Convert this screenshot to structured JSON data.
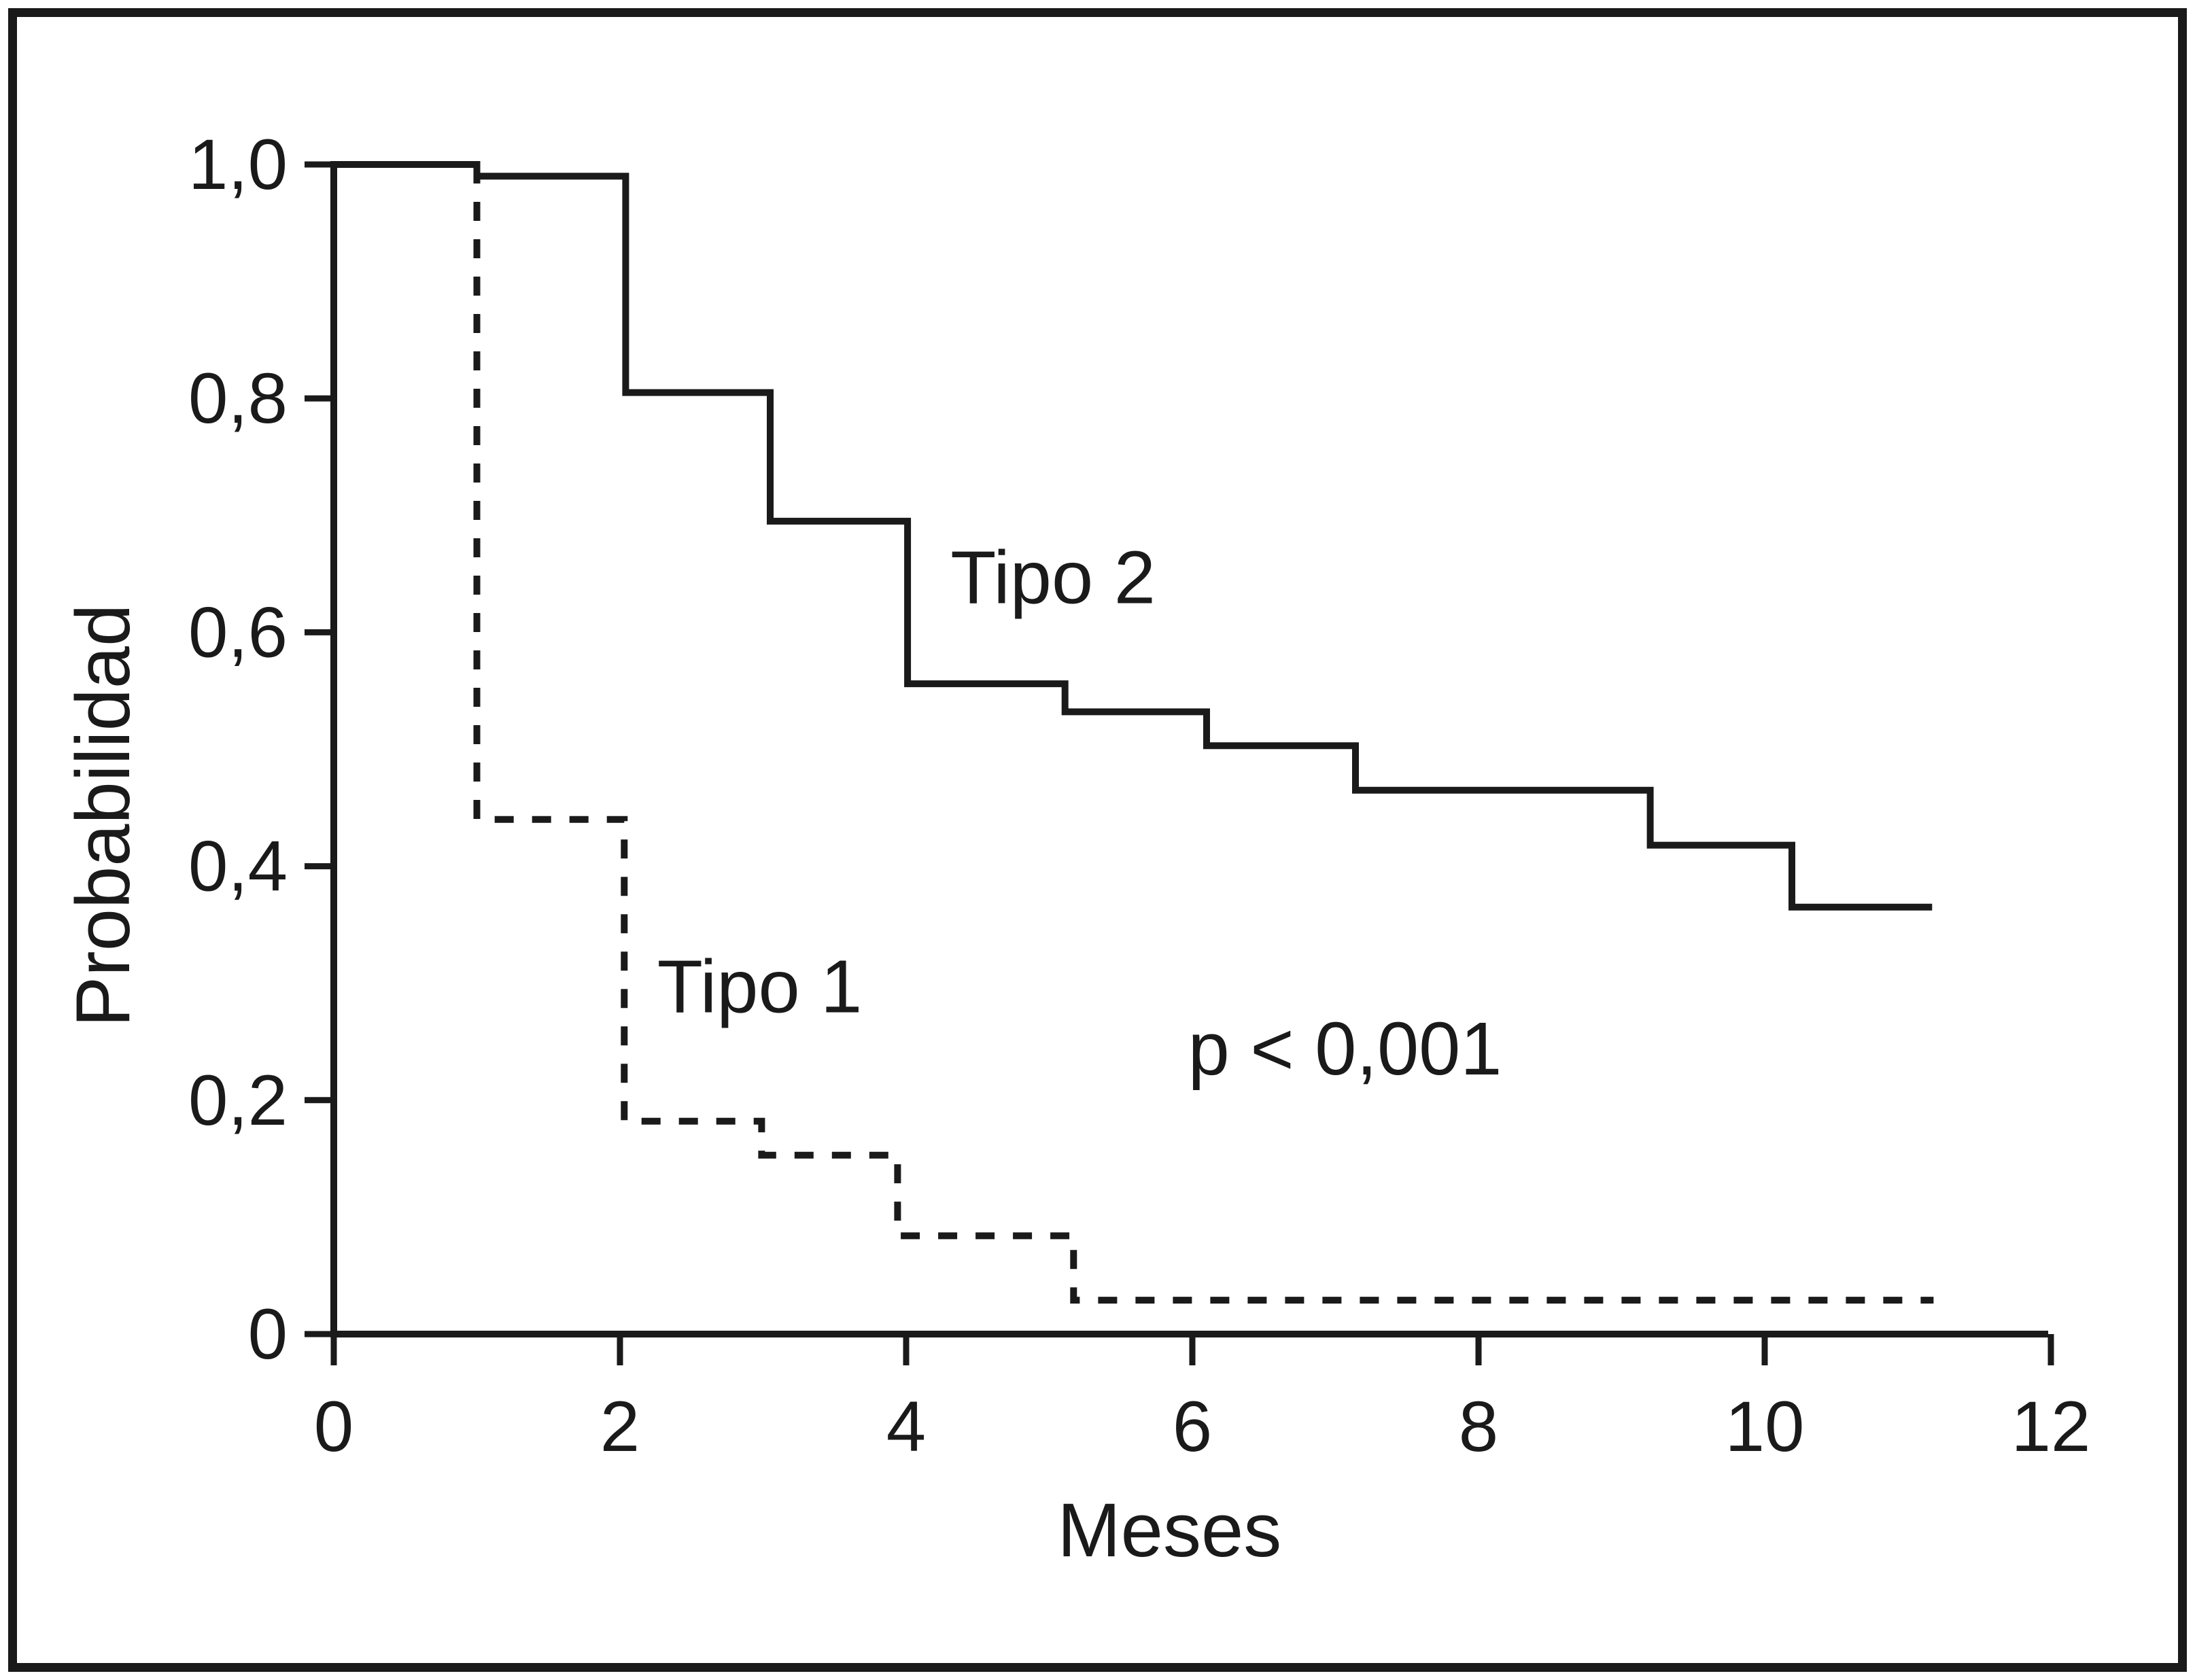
{
  "figure": {
    "background": "#ffffff",
    "ink_color": "#1a1a1a",
    "kind": "kaplan-meier-survival-plot"
  },
  "chart_data": {
    "type": "line",
    "subtype": "step-survival",
    "title": "",
    "xlabel": "Meses",
    "ylabel": "Probabilidad",
    "xlim": [
      0,
      12
    ],
    "ylim": [
      0,
      1.0
    ],
    "grid": "off",
    "legend_position": "inline-annotations",
    "x_ticks": [
      {
        "value": 0,
        "label": "0"
      },
      {
        "value": 2,
        "label": "2"
      },
      {
        "value": 4,
        "label": "4"
      },
      {
        "value": 6,
        "label": "6"
      },
      {
        "value": 8,
        "label": "8"
      },
      {
        "value": 10,
        "label": "10"
      },
      {
        "value": 12,
        "label": "12"
      }
    ],
    "y_ticks": [
      {
        "value": 0,
        "label": "0"
      },
      {
        "value": 0.2,
        "label": "0,2"
      },
      {
        "value": 0.4,
        "label": "0,4"
      },
      {
        "value": 0.6,
        "label": "0,6"
      },
      {
        "value": 0.8,
        "label": "0,8"
      },
      {
        "value": 1.0,
        "label": "1,0"
      }
    ],
    "series": [
      {
        "name": "Tipo 2",
        "style": "solid",
        "points": [
          [
            0,
            1.0
          ],
          [
            1.0,
            1.0
          ],
          [
            1.0,
            0.99
          ],
          [
            2.04,
            0.99
          ],
          [
            2.04,
            0.805
          ],
          [
            3.05,
            0.805
          ],
          [
            3.05,
            0.695
          ],
          [
            4.01,
            0.695
          ],
          [
            4.01,
            0.556
          ],
          [
            5.11,
            0.556
          ],
          [
            5.11,
            0.532
          ],
          [
            6.1,
            0.532
          ],
          [
            6.1,
            0.503
          ],
          [
            7.14,
            0.503
          ],
          [
            7.14,
            0.465
          ],
          [
            9.2,
            0.465
          ],
          [
            9.2,
            0.418
          ],
          [
            10.19,
            0.418
          ],
          [
            10.19,
            0.365
          ],
          [
            11.17,
            0.365
          ]
        ]
      },
      {
        "name": "Tipo 1",
        "style": "dashed",
        "points": [
          [
            1.0,
            1.0
          ],
          [
            1.0,
            0.44
          ],
          [
            2.03,
            0.44
          ],
          [
            2.03,
            0.182
          ],
          [
            2.99,
            0.182
          ],
          [
            2.99,
            0.153
          ],
          [
            3.94,
            0.153
          ],
          [
            3.94,
            0.084
          ],
          [
            5.17,
            0.084
          ],
          [
            5.17,
            0.029
          ],
          [
            11.18,
            0.029
          ]
        ]
      }
    ],
    "annotations": [
      {
        "id": "label-tipo-2",
        "text": "Tipo 2",
        "x": 4.31,
        "y": 0.625
      },
      {
        "id": "label-tipo-1",
        "text": "Tipo 1",
        "x": 2.26,
        "y": 0.275
      },
      {
        "id": "p-value",
        "text": "p < 0,001",
        "x": 5.97,
        "y": 0.222
      }
    ]
  }
}
